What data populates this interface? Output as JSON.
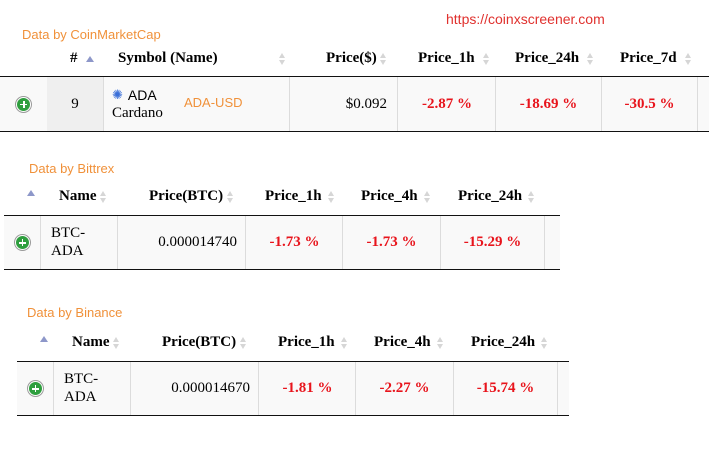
{
  "site_url": "https://coinxscreener.com",
  "sections": {
    "coinmarketcap": {
      "title": "Data by CoinMarketCap",
      "headers": {
        "rank": "#",
        "symbol": "Symbol (Name)",
        "price": "Price($)",
        "price_1h": "Price_1h",
        "price_24h": "Price_24h",
        "price_7d": "Price_7d"
      },
      "row": {
        "rank": "9",
        "symbol": "ADA",
        "name": "Cardano",
        "pair": "ADA-USD",
        "price": "$0.092",
        "price_1h": "-2.87 %",
        "price_24h": "-18.69 %",
        "price_7d": "-30.5 %"
      }
    },
    "bittrex": {
      "title": "Data by Bittrex",
      "headers": {
        "name": "Name",
        "price": "Price(BTC)",
        "price_1h": "Price_1h",
        "price_4h": "Price_4h",
        "price_24h": "Price_24h"
      },
      "row": {
        "name_line1": "BTC-",
        "name_line2": "ADA",
        "price": "0.000014740",
        "price_1h": "-1.73 %",
        "price_4h": "-1.73 %",
        "price_24h": "-15.29 %"
      }
    },
    "binance": {
      "title": "Data by Binance",
      "headers": {
        "name": "Name",
        "price": "Price(BTC)",
        "price_1h": "Price_1h",
        "price_4h": "Price_4h",
        "price_24h": "Price_24h"
      },
      "row": {
        "name_line1": "BTC-",
        "name_line2": "ADA",
        "price": "0.000014670",
        "price_1h": "-1.81 %",
        "price_4h": "-2.27 %",
        "price_24h": "-15.74 %"
      }
    }
  },
  "colors": {
    "accent_orange": "#f0913a",
    "negative_red": "#e8141c",
    "url_red": "#e0312e",
    "expand_green": "#2e9e3e"
  },
  "icons": {
    "expand": "plus-circle-icon",
    "coin": "cardano-logo-icon",
    "sort_asc": "sort-asc-icon",
    "sort": "sort-icon"
  }
}
